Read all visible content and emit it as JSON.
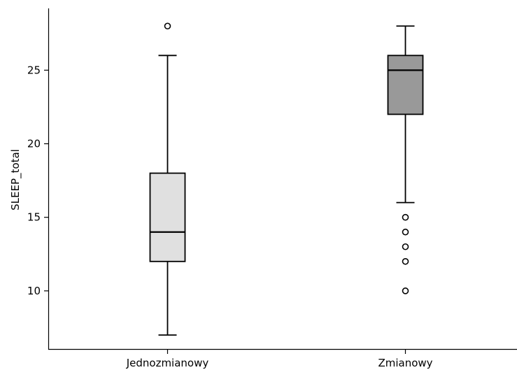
{
  "chart_data": {
    "type": "box",
    "ylabel": "SLEEP_total",
    "xlabel": "",
    "ylim": [
      6,
      29.2
    ],
    "yticks": [
      10,
      15,
      20,
      25
    ],
    "categories": [
      "Jednozmianowy",
      "Zmianowy"
    ],
    "boxes": [
      {
        "category": "Jednozmianowy",
        "whisker_low": 7,
        "q1": 12,
        "median": 14,
        "q3": 18,
        "whisker_high": 26,
        "outliers": [
          28
        ],
        "color": "#e0e0e0"
      },
      {
        "category": "Zmianowy",
        "whisker_low": 16,
        "q1": 22,
        "median": 25,
        "q3": 26,
        "whisker_high": 28,
        "outliers": [
          15,
          14,
          13,
          12,
          10
        ],
        "color": "#999999"
      }
    ]
  }
}
